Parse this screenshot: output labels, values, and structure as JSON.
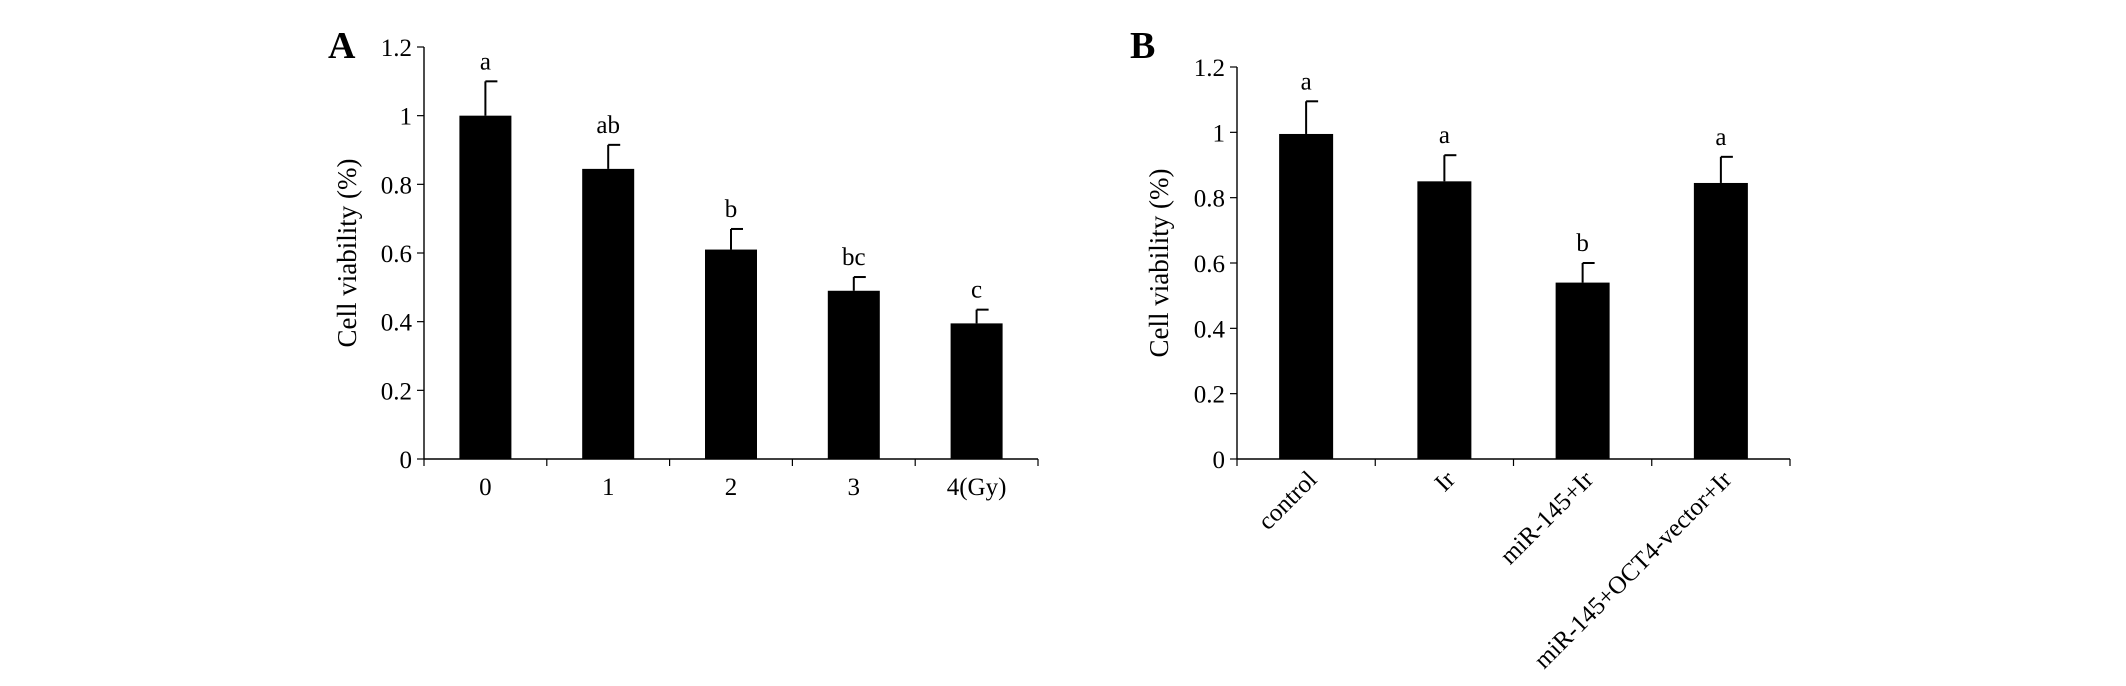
{
  "chart_data": [
    {
      "type": "bar",
      "panel_letter": "A",
      "ylabel": "Cell viability (%)",
      "xlabel": "",
      "ylim": [
        0,
        1.2
      ],
      "yticks": [
        0,
        0.2,
        0.4,
        0.6,
        0.8,
        1,
        1.2
      ],
      "ytick_labels": [
        "0",
        "0.2",
        "0.4",
        "0.6",
        "0.8",
        "1",
        "1.2"
      ],
      "categories": [
        "0",
        "1",
        "2",
        "3",
        "4(Gy)"
      ],
      "values": [
        1.0,
        0.845,
        0.61,
        0.49,
        0.395
      ],
      "errors": [
        0.1,
        0.07,
        0.06,
        0.04,
        0.04
      ],
      "significance": [
        "a",
        "ab",
        "b",
        "bc",
        "c"
      ],
      "bar_color": "#000000",
      "grid": false,
      "legend": "none"
    },
    {
      "type": "bar",
      "panel_letter": "B",
      "ylabel": "Cell viability (%)",
      "xlabel": "",
      "ylim": [
        0,
        1.2
      ],
      "yticks": [
        0,
        0.2,
        0.4,
        0.6,
        0.8,
        1,
        1.2
      ],
      "ytick_labels": [
        "0",
        "0.2",
        "0.4",
        "0.6",
        "0.8",
        "1",
        "1.2"
      ],
      "categories": [
        "control",
        "Ir",
        "miR-145+Ir",
        "miR-145+OCT4-vector+Ir"
      ],
      "values": [
        0.995,
        0.85,
        0.54,
        0.845
      ],
      "errors": [
        0.1,
        0.08,
        0.06,
        0.08
      ],
      "significance": [
        "a",
        "a",
        "b",
        "a"
      ],
      "bar_color": "#000000",
      "grid": false,
      "legend": "none"
    }
  ]
}
